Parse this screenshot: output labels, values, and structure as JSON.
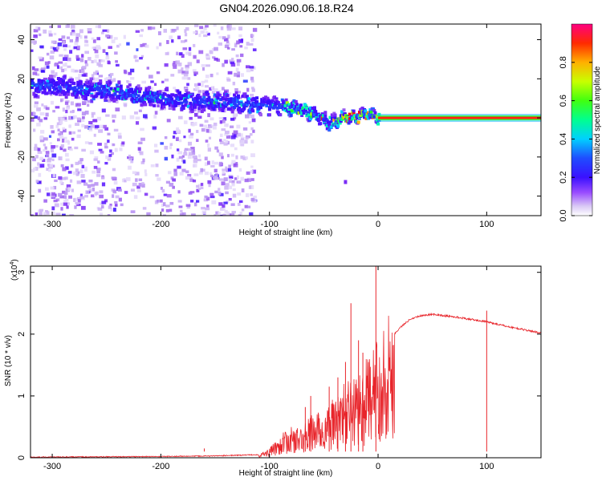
{
  "title": "GN04.2026.090.06.18.R24",
  "chart_data": [
    {
      "type": "heatmap",
      "name": "spectrogram",
      "xlabel": "Height of straight line (km)",
      "ylabel": "Frequency (Hz)",
      "xlim": [
        -320,
        150
      ],
      "ylim": [
        -50,
        48
      ],
      "xticks": [
        -300,
        -200,
        -100,
        0,
        100
      ],
      "yticks": [
        -40,
        -20,
        0,
        20,
        40
      ],
      "tick_labels_x": [
        "-300",
        "-200",
        "-100",
        "0",
        "100"
      ],
      "tick_labels_y": [
        "-40",
        "-20",
        "0",
        "20",
        "40"
      ],
      "ridge": {
        "x": [
          -320,
          -300,
          -280,
          -260,
          -240,
          -220,
          -200,
          -180,
          -160,
          -140,
          -120,
          -100,
          -90,
          -80,
          -70,
          -60,
          -50,
          -45,
          -40,
          -35,
          -30,
          -25,
          -20,
          -15,
          -10,
          -5,
          0,
          50,
          100,
          150
        ],
        "y": [
          16,
          16,
          15,
          14,
          13,
          11,
          10,
          9,
          8,
          8,
          7,
          6,
          6,
          5,
          4,
          2,
          -1,
          -2,
          -2,
          0,
          1,
          0,
          1,
          2,
          2,
          1,
          0,
          0,
          0,
          0
        ]
      },
      "noise_until_x": -125,
      "outlier": {
        "x": -30,
        "y": -33
      },
      "colorbar": {
        "label": "Normalized spectral amplitude",
        "ticks": [
          "0.0",
          "0.2",
          "0.4",
          "0.6",
          "0.8"
        ],
        "tick_values": [
          0.0,
          0.2,
          0.4,
          0.6,
          0.8
        ],
        "range": [
          0,
          1
        ]
      }
    },
    {
      "type": "line",
      "name": "snr",
      "xlabel": "Height of straight line (km)",
      "ylabel": "SNR (10 * v/v)",
      "multiplier_label": "(x10",
      "multiplier_exp": "4",
      "multiplier_close": ")",
      "xlim": [
        -320,
        150
      ],
      "ylim": [
        0,
        3.1
      ],
      "xticks": [
        -300,
        -200,
        -100,
        0,
        100
      ],
      "yticks": [
        0,
        1,
        2,
        3
      ],
      "tick_labels_x": [
        "-300",
        "-200",
        "-100",
        "0",
        "100"
      ],
      "tick_labels_y": [
        "0",
        "1",
        "2",
        "3"
      ],
      "color": "#e8252b",
      "envelope": {
        "x": [
          -320,
          -200,
          -150,
          -110,
          -100,
          -90,
          -80,
          -70,
          -60,
          -50,
          -40,
          -30,
          -20,
          -10,
          -5,
          0,
          10,
          20,
          30,
          40,
          50,
          70,
          100,
          120,
          150
        ],
        "y": [
          0.01,
          0.02,
          0.03,
          0.05,
          0.12,
          0.3,
          0.4,
          0.4,
          0.6,
          0.6,
          0.8,
          1.0,
          1.1,
          1.3,
          1.4,
          1.6,
          1.9,
          2.1,
          2.25,
          2.3,
          2.32,
          2.28,
          2.2,
          2.12,
          2.02
        ]
      },
      "spikes": [
        {
          "x": -160,
          "y": 0.15
        },
        {
          "x": -67,
          "y": 0.82
        },
        {
          "x": -62,
          "y": 1.0
        },
        {
          "x": -45,
          "y": 1.15
        },
        {
          "x": -37,
          "y": 1.3
        },
        {
          "x": -30,
          "y": 1.55
        },
        {
          "x": -25,
          "y": 2.5
        },
        {
          "x": -18,
          "y": 1.9
        },
        {
          "x": -14,
          "y": 1.7
        },
        {
          "x": -2,
          "y": 3.1
        },
        {
          "x": 100,
          "y": 2.38
        }
      ]
    }
  ]
}
